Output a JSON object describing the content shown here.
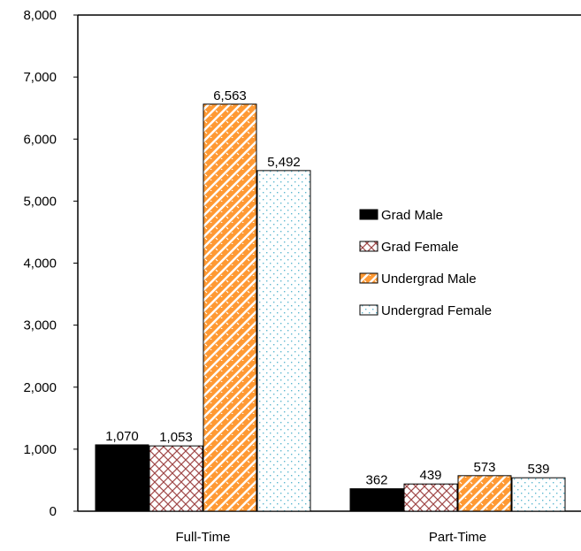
{
  "chart_data": {
    "type": "bar",
    "categories": [
      "Full-Time",
      "Part-Time"
    ],
    "series": [
      {
        "name": "Grad Male",
        "values": [
          1070,
          362
        ],
        "color": "#000000",
        "pattern": "solid"
      },
      {
        "name": "Grad Female",
        "values": [
          1053,
          439
        ],
        "color": "#a04848",
        "pattern": "crosshatch"
      },
      {
        "name": "Undergrad Male",
        "values": [
          6563,
          573
        ],
        "color": "#ff9933",
        "pattern": "bricks"
      },
      {
        "name": "Undergrad Female",
        "values": [
          5492,
          539
        ],
        "color": "#5fb8d0",
        "pattern": "dots"
      }
    ],
    "data_labels": [
      [
        "1,070",
        "1,053",
        "6,563",
        "5,492"
      ],
      [
        "362",
        "439",
        "573",
        "539"
      ]
    ],
    "ylim": [
      0,
      8000
    ],
    "yticks": [
      0,
      1000,
      2000,
      3000,
      4000,
      5000,
      6000,
      7000,
      8000
    ],
    "ytick_labels": [
      "0",
      "1,000",
      "2,000",
      "3,000",
      "4,000",
      "5,000",
      "6,000",
      "7,000",
      "8,000"
    ],
    "grid": false,
    "legend_position": "right",
    "title": "",
    "xlabel": "",
    "ylabel": ""
  }
}
